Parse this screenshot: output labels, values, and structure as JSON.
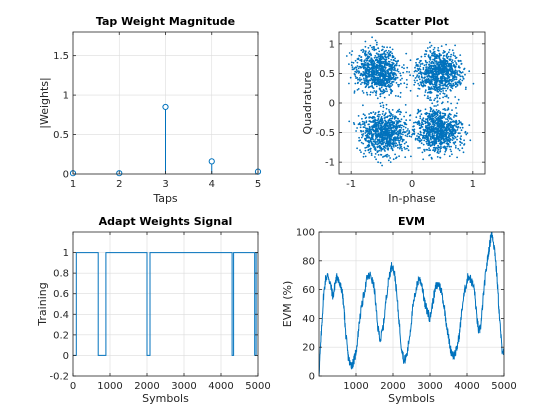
{
  "chart_data": [
    {
      "id": "tap",
      "type": "stem",
      "title": "Tap Weight Magnitude",
      "xlabel": "Taps",
      "ylabel": "|Weights|",
      "xlim": [
        1,
        5
      ],
      "ylim": [
        0,
        1.8
      ],
      "xticks": [
        1,
        2,
        3,
        4,
        5
      ],
      "yticks": [
        0,
        0.5,
        1,
        1.5
      ],
      "x": [
        1,
        2,
        3,
        4,
        5
      ],
      "y": [
        0.01,
        0.01,
        0.85,
        0.16,
        0.03
      ],
      "color": "#0072bd"
    },
    {
      "id": "scatter",
      "type": "scatter",
      "title": "Scatter Plot",
      "xlabel": "In-phase",
      "ylabel": "Quadrature",
      "xlim": [
        -1.2,
        1.2
      ],
      "ylim": [
        -1.2,
        1.2
      ],
      "xticks": [
        -1,
        0,
        1
      ],
      "yticks": [
        -1,
        -0.5,
        0,
        0.5,
        1
      ],
      "clusters": [
        [
          -0.55,
          0.55
        ],
        [
          0.45,
          0.5
        ],
        [
          -0.45,
          -0.5
        ],
        [
          0.45,
          -0.45
        ]
      ],
      "color": "#0072bd"
    },
    {
      "id": "adapt",
      "type": "line",
      "title": "Adapt Weights Signal",
      "xlabel": "Symbols",
      "ylabel": "Training",
      "xlim": [
        0,
        5000
      ],
      "ylim": [
        -0.2,
        1.2
      ],
      "xticks": [
        0,
        1000,
        2000,
        3000,
        4000,
        5000
      ],
      "yticks": [
        -0.2,
        0,
        0.2,
        0.4,
        0.6,
        0.8,
        1
      ],
      "x": [
        0,
        90,
        90,
        680,
        680,
        890,
        890,
        2000,
        2000,
        2080,
        2080,
        4300,
        4300,
        4340,
        4340,
        4910,
        4910,
        4950,
        4950,
        5000
      ],
      "y": [
        0,
        0,
        1,
        1,
        0,
        0,
        1,
        1,
        0,
        0,
        1,
        1,
        0,
        0,
        1,
        1,
        0,
        0,
        1,
        1
      ],
      "color": "#0072bd"
    },
    {
      "id": "evm",
      "type": "line",
      "title": "EVM",
      "xlabel": "Symbols",
      "ylabel": "EVM (%)",
      "xlim": [
        0,
        5000
      ],
      "ylim": [
        0,
        100
      ],
      "xticks": [
        1000,
        2000,
        3000,
        4000,
        5000
      ],
      "yticks": [
        0,
        20,
        40,
        60,
        80,
        100
      ],
      "x": [
        0,
        60,
        120,
        180,
        250,
        320,
        380,
        440,
        500,
        560,
        620,
        680,
        720,
        780,
        840,
        900,
        960,
        1020,
        1100,
        1200,
        1300,
        1400,
        1500,
        1580,
        1660,
        1740,
        1820,
        1900,
        1980,
        2060,
        2140,
        2220,
        2300,
        2380,
        2460,
        2540,
        2620,
        2700,
        2780,
        2860,
        2940,
        3000,
        3080,
        3160,
        3240,
        3320,
        3400,
        3480,
        3560,
        3640,
        3720,
        3800,
        3880,
        3960,
        4040,
        4120,
        4200,
        4260,
        4320,
        4380,
        4440,
        4500,
        4560,
        4620,
        4660,
        4700,
        4760,
        4820,
        4880,
        4940,
        5000
      ],
      "y": [
        2,
        28,
        55,
        68,
        70,
        62,
        55,
        65,
        70,
        63,
        60,
        45,
        30,
        15,
        8,
        8,
        12,
        20,
        40,
        55,
        68,
        70,
        60,
        35,
        25,
        35,
        55,
        70,
        78,
        68,
        45,
        22,
        10,
        15,
        30,
        48,
        60,
        68,
        64,
        50,
        44,
        40,
        52,
        62,
        64,
        58,
        45,
        30,
        18,
        14,
        18,
        30,
        50,
        62,
        70,
        66,
        60,
        42,
        30,
        36,
        55,
        70,
        82,
        92,
        100,
        96,
        85,
        65,
        40,
        20,
        15
      ],
      "color": "#0072bd"
    }
  ]
}
